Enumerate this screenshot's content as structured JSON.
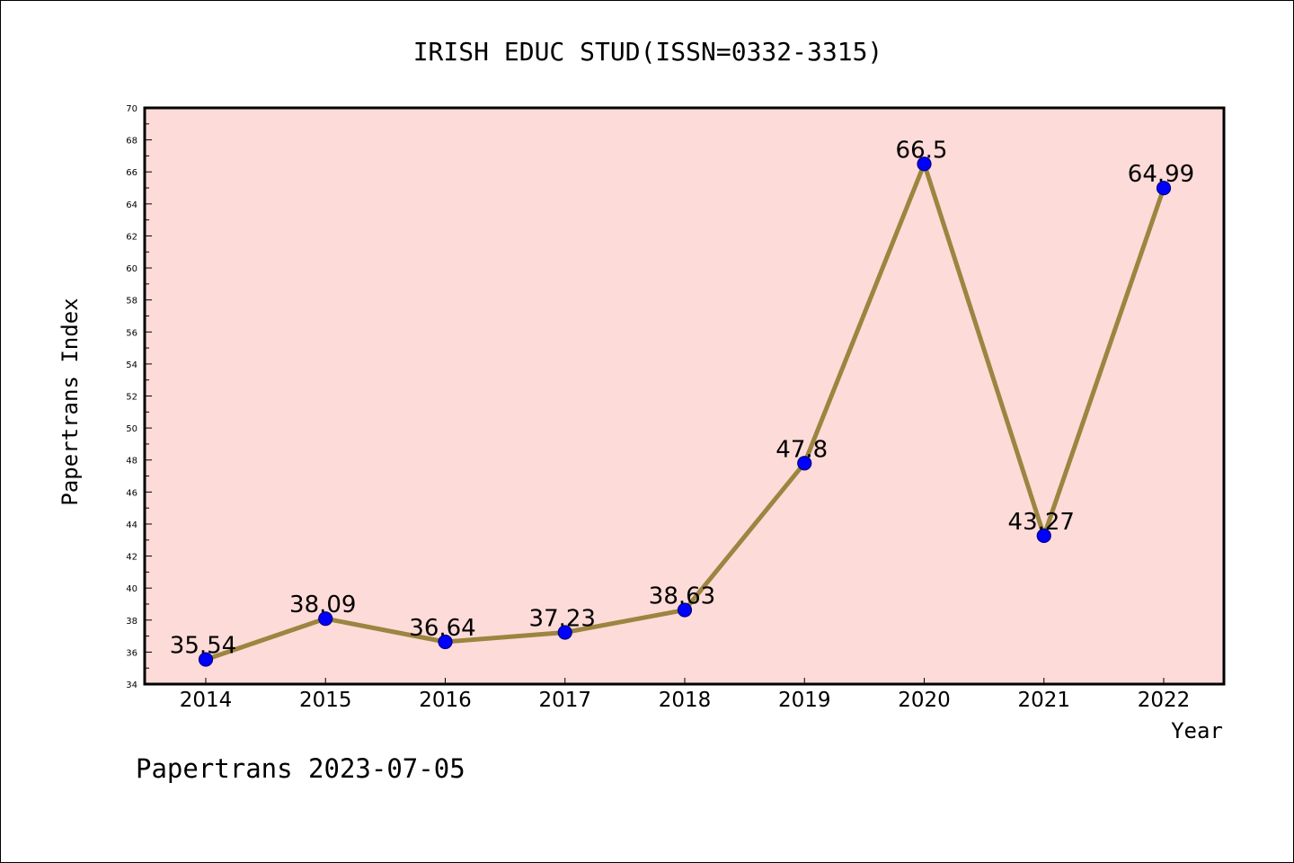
{
  "chart_data": {
    "type": "line",
    "title": "IRISH EDUC STUD(ISSN=0332-3315)",
    "xlabel": "Year",
    "ylabel": "Papertrans Index",
    "categories": [
      "2014",
      "2015",
      "2016",
      "2017",
      "2018",
      "2019",
      "2020",
      "2021",
      "2022"
    ],
    "series": [
      {
        "values": [
          35.54,
          38.09,
          36.64,
          37.23,
          38.63,
          47.8,
          66.5,
          43.27,
          64.99
        ],
        "labels": [
          "35.54",
          "38.09",
          "36.64",
          "37.23",
          "38.63",
          "47.8",
          "66.5",
          "43.27",
          "64.99"
        ]
      }
    ],
    "ylim": [
      34,
      70
    ],
    "yticks": [
      "34",
      "36",
      "38",
      "40",
      "42",
      "44",
      "46",
      "48",
      "50",
      "52",
      "54",
      "56",
      "58",
      "60",
      "62",
      "64",
      "66",
      "68",
      "70"
    ],
    "grid": false,
    "legend": "none",
    "colors": {
      "plot_background": "#fddbd8",
      "line": "#9b8540",
      "marker": "#0000ff",
      "marker_edge": "#000080"
    }
  },
  "footer": {
    "text": "Papertrans 2023-07-05"
  }
}
